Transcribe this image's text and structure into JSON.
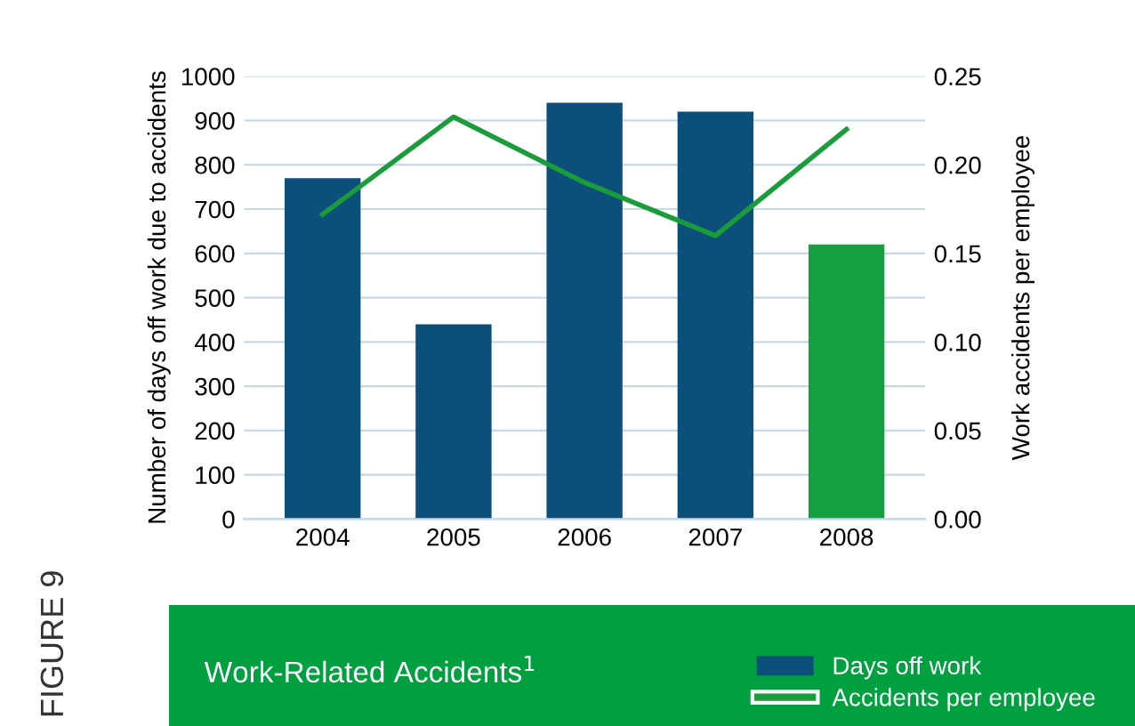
{
  "chart_data": {
    "type": "bar",
    "title": "Work-Related Accidents$^{1}$",
    "categories": [
      "2004",
      "2005",
      "2006",
      "2007",
      "2008"
    ],
    "series": [
      {
        "name": "Days off work",
        "color": "#0b4f7a",
        "colors": [
          "#0b4f7a",
          "#0b4f7a",
          "#0b4f7a",
          "#0b4f7a",
          "#14a040"
        ],
        "values": [
          770,
          440,
          940,
          920,
          620
        ]
      },
      {
        "name": "Accidents per employee",
        "type": "line",
        "axis": "y2",
        "color": "#1a9c3a",
        "values": [
          0.172,
          0.227,
          0.19,
          0.16,
          0.22
        ]
      }
    ],
    "ylabel": "Number of days off work due to accidents",
    "y2label": "Work accidents per employee",
    "ylim": [
      0,
      1000
    ],
    "yticks": [
      0,
      100,
      200,
      300,
      400,
      500,
      600,
      700,
      800,
      900,
      1000
    ],
    "y2lim": [
      0,
      0.25
    ],
    "y2ticks": [
      {
        "value": 0,
        "label": "0.00"
      },
      {
        "value": 0.05,
        "label": "0.05"
      },
      {
        "value": 0.1,
        "label": "0.10"
      },
      {
        "value": 0.15,
        "label": "0.15"
      },
      {
        "value": 0.2,
        "label": "0.20"
      },
      {
        "value": 0.25,
        "label": "0.25"
      }
    ],
    "grid": "y",
    "legend": "bottom right",
    "marker": "none",
    "line_style": "solid",
    "annotations": [
      "FIGURE 9"
    ]
  }
}
